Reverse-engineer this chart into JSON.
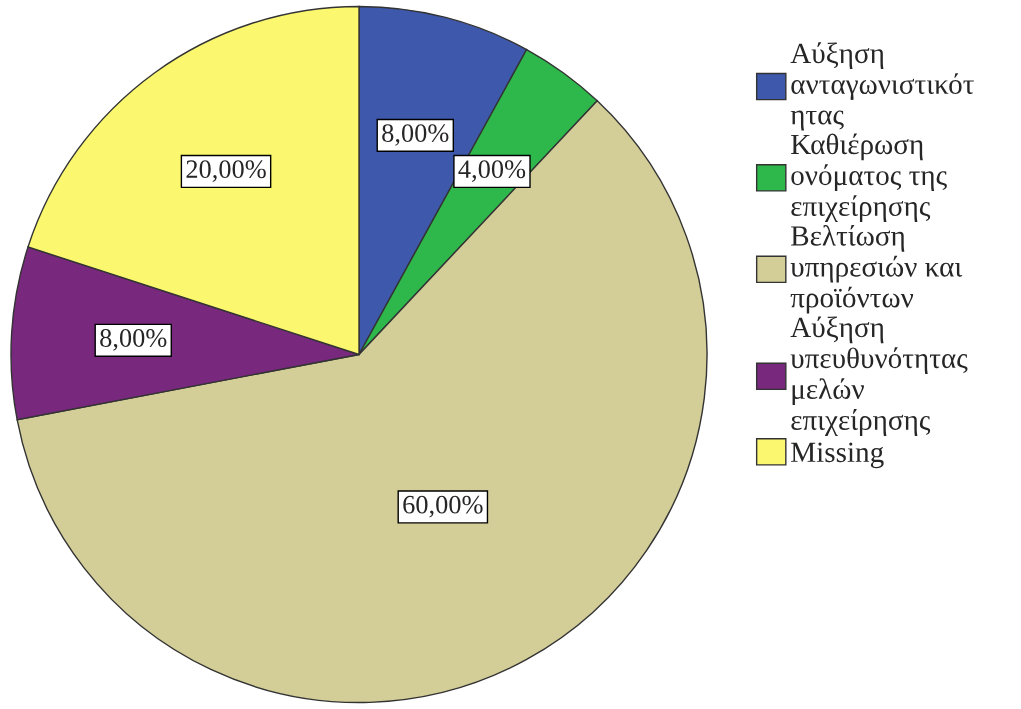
{
  "chart_data": {
    "type": "pie",
    "categories": [
      "Αύξηση\nανταγωνιστικότ\nητας",
      "Καθιέρωση\nονόματος της\nεπιχείρησης",
      "Βελτίωση\nυπηρεσιών και\nπροϊόντων",
      "Αύξηση\nυπευθυνότητας\nμελών\nεπιχείρησης",
      "Missing"
    ],
    "values": [
      8,
      4,
      60,
      8,
      20
    ],
    "colors": [
      "#3e58ac",
      "#2eb84b",
      "#d3ce97",
      "#78287d",
      "#fbf86f"
    ],
    "value_labels": [
      "8,00%",
      "4,00%",
      "60,00%",
      "8,00%",
      "20,00%"
    ],
    "legend": "right"
  }
}
